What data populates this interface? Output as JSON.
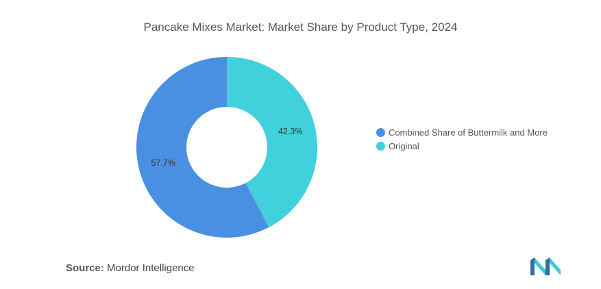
{
  "chart_data": {
    "type": "pie",
    "title": "Pancake Mixes Market: Market Share by Product Type, 2024",
    "donut": true,
    "slices": [
      {
        "label": "Original",
        "value": 42.3,
        "display": "42.3%",
        "color": "#41d1dc"
      },
      {
        "label": "Combined Share of Buttermilk and More",
        "value": 57.7,
        "display": "57.7%",
        "color": "#4a90e2"
      }
    ],
    "legend": [
      {
        "label": "Combined Share of Buttermilk and More",
        "color": "#4a90e2"
      },
      {
        "label": "Original",
        "color": "#41d1dc"
      }
    ],
    "legend_position": "right"
  },
  "source": {
    "label": "Source:",
    "value": "Mordor Intelligence"
  },
  "logo": {
    "icon": "mordor-intelligence-logo-icon",
    "colors": [
      "#2f6fa8",
      "#41c8d6"
    ]
  }
}
